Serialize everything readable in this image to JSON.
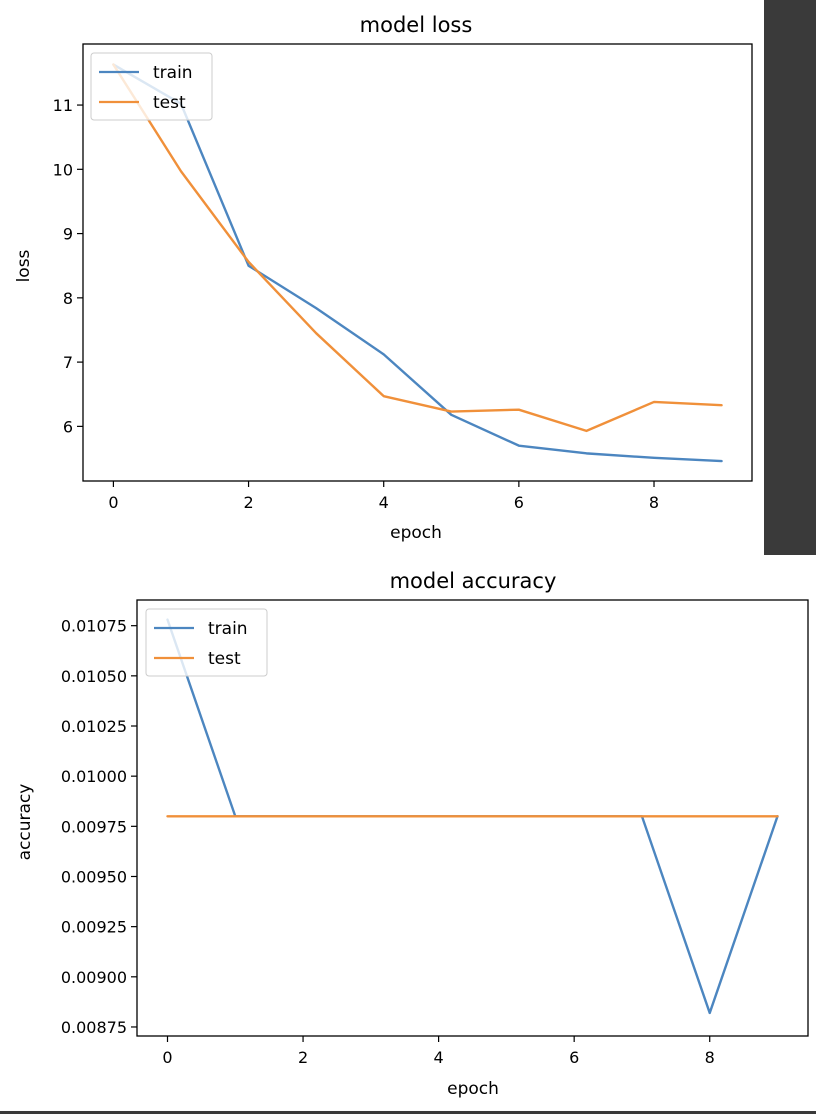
{
  "colors": {
    "train": "#4c86c0",
    "test": "#f0903a",
    "frame": "#000000",
    "dark_panel": "#3a3a3a"
  },
  "chart_data": [
    {
      "type": "line",
      "title": "model loss",
      "xlabel": "epoch",
      "ylabel": "loss",
      "xlim": [
        -0.45,
        9.45
      ],
      "ylim": [
        5.15,
        11.95
      ],
      "xticks": [
        0,
        2,
        4,
        6,
        8
      ],
      "yticks": [
        6,
        7,
        8,
        9,
        10,
        11
      ],
      "ytick_labels": [
        "6",
        "7",
        "8",
        "9",
        "10",
        "11"
      ],
      "grid": false,
      "legend": "upper-left",
      "x": [
        0,
        1,
        2,
        3,
        4,
        5,
        6,
        7,
        8,
        9
      ],
      "series": [
        {
          "name": "train",
          "values": [
            11.63,
            11.02,
            8.5,
            7.84,
            7.12,
            6.18,
            5.7,
            5.58,
            5.51,
            5.46
          ]
        },
        {
          "name": "test",
          "values": [
            11.63,
            9.97,
            8.56,
            7.45,
            6.47,
            6.23,
            6.26,
            5.93,
            6.38,
            6.33
          ]
        }
      ]
    },
    {
      "type": "line",
      "title": "model accuracy",
      "xlabel": "epoch",
      "ylabel": "accuracy",
      "xlim": [
        -0.45,
        9.45
      ],
      "ylim": [
        0.008705,
        0.010878
      ],
      "xticks": [
        0,
        2,
        4,
        6,
        8
      ],
      "yticks": [
        0.00875,
        0.009,
        0.00925,
        0.0095,
        0.00975,
        0.01,
        0.01025,
        0.0105,
        0.01075
      ],
      "ytick_labels": [
        "0.00875",
        "0.00900",
        "0.00925",
        "0.00950",
        "0.00975",
        "0.01000",
        "0.01025",
        "0.01050",
        "0.01075"
      ],
      "grid": false,
      "legend": "upper-left",
      "x": [
        0,
        1,
        2,
        3,
        4,
        5,
        6,
        7,
        8,
        9
      ],
      "series": [
        {
          "name": "train",
          "values": [
            0.01078,
            0.0098,
            0.0098,
            0.0098,
            0.0098,
            0.0098,
            0.0098,
            0.0098,
            0.00882,
            0.0098
          ]
        },
        {
          "name": "test",
          "values": [
            0.0098,
            0.0098,
            0.0098,
            0.0098,
            0.0098,
            0.0098,
            0.0098,
            0.0098,
            0.0098,
            0.0098
          ]
        }
      ]
    }
  ]
}
